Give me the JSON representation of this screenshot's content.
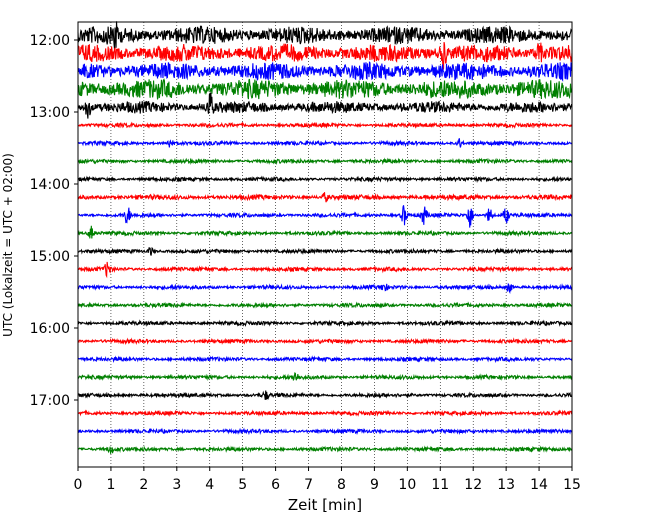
{
  "chart_data": {
    "type": "line",
    "xlabel": "Zeit  [min]",
    "ylabel": "UTC (Lokalzeit = UTC + 02:00)",
    "xlim": [
      0,
      15
    ],
    "x_ticks": [
      "0",
      "1",
      "2",
      "3",
      "4",
      "5",
      "6",
      "7",
      "8",
      "9",
      "10",
      "11",
      "12",
      "13",
      "14",
      "15"
    ],
    "y_tick_labels": [
      "12:00",
      "13:00",
      "14:00",
      "15:00",
      "16:00",
      "17:00"
    ],
    "grid": "vertical dotted lines at each minute",
    "colors": [
      "#000000",
      "#ff0000",
      "#0000ff",
      "#008000"
    ],
    "traces": [
      {
        "start": "11:56",
        "color": "#000000",
        "amplitude": 9,
        "events": [
          {
            "x": 1.1,
            "amp": 14
          }
        ]
      },
      {
        "start": "12:11",
        "color": "#ff0000",
        "amplitude": 9,
        "events": [
          {
            "x": 11.1,
            "amp": 12
          },
          {
            "x": 14.0,
            "amp": 10
          }
        ]
      },
      {
        "start": "12:26",
        "color": "#0000ff",
        "amplitude": 9,
        "events": []
      },
      {
        "start": "12:41",
        "color": "#008000",
        "amplitude": 10,
        "events": []
      },
      {
        "start": "12:56",
        "color": "#000000",
        "amplitude": 6,
        "events": [
          {
            "x": 0.3,
            "amp": 10
          },
          {
            "x": 4.0,
            "amp": 14
          }
        ]
      },
      {
        "start": "13:11",
        "color": "#ff0000",
        "amplitude": 2,
        "events": []
      },
      {
        "start": "13:26",
        "color": "#0000ff",
        "amplitude": 2,
        "events": [
          {
            "x": 2.8,
            "amp": 5
          },
          {
            "x": 11.6,
            "amp": 5
          }
        ]
      },
      {
        "start": "13:41",
        "color": "#008000",
        "amplitude": 2,
        "events": []
      },
      {
        "start": "13:56",
        "color": "#000000",
        "amplitude": 2,
        "events": []
      },
      {
        "start": "14:11",
        "color": "#ff0000",
        "amplitude": 2.5,
        "events": [
          {
            "x": 7.5,
            "amp": 4
          }
        ]
      },
      {
        "start": "14:26",
        "color": "#0000ff",
        "amplitude": 2,
        "events": [
          {
            "x": 1.5,
            "amp": 9
          },
          {
            "x": 9.9,
            "amp": 10
          },
          {
            "x": 10.5,
            "amp": 9
          },
          {
            "x": 11.9,
            "amp": 13
          },
          {
            "x": 12.5,
            "amp": 8
          },
          {
            "x": 13.0,
            "amp": 8
          }
        ]
      },
      {
        "start": "14:41",
        "color": "#008000",
        "amplitude": 2,
        "events": [
          {
            "x": 0.4,
            "amp": 7
          }
        ]
      },
      {
        "start": "14:56",
        "color": "#000000",
        "amplitude": 2,
        "events": [
          {
            "x": 2.2,
            "amp": 4
          }
        ]
      },
      {
        "start": "15:11",
        "color": "#ff0000",
        "amplitude": 2,
        "events": [
          {
            "x": 0.9,
            "amp": 8
          }
        ]
      },
      {
        "start": "15:26",
        "color": "#0000ff",
        "amplitude": 2,
        "events": [
          {
            "x": 9.3,
            "amp": 4
          },
          {
            "x": 13.1,
            "amp": 5
          }
        ]
      },
      {
        "start": "15:41",
        "color": "#008000",
        "amplitude": 2,
        "events": []
      },
      {
        "start": "15:56",
        "color": "#000000",
        "amplitude": 2,
        "events": []
      },
      {
        "start": "16:11",
        "color": "#ff0000",
        "amplitude": 2,
        "events": []
      },
      {
        "start": "16:26",
        "color": "#0000ff",
        "amplitude": 2,
        "events": []
      },
      {
        "start": "16:41",
        "color": "#008000",
        "amplitude": 2,
        "events": [
          {
            "x": 6.6,
            "amp": 5
          }
        ]
      },
      {
        "start": "16:56",
        "color": "#000000",
        "amplitude": 2,
        "events": [
          {
            "x": 5.7,
            "amp": 4
          }
        ]
      },
      {
        "start": "17:11",
        "color": "#ff0000",
        "amplitude": 2,
        "events": []
      },
      {
        "start": "17:26",
        "color": "#0000ff",
        "amplitude": 2,
        "events": []
      },
      {
        "start": "17:41",
        "color": "#008000",
        "amplitude": 2,
        "events": [
          {
            "x": 1.0,
            "amp": 4
          }
        ]
      }
    ]
  }
}
